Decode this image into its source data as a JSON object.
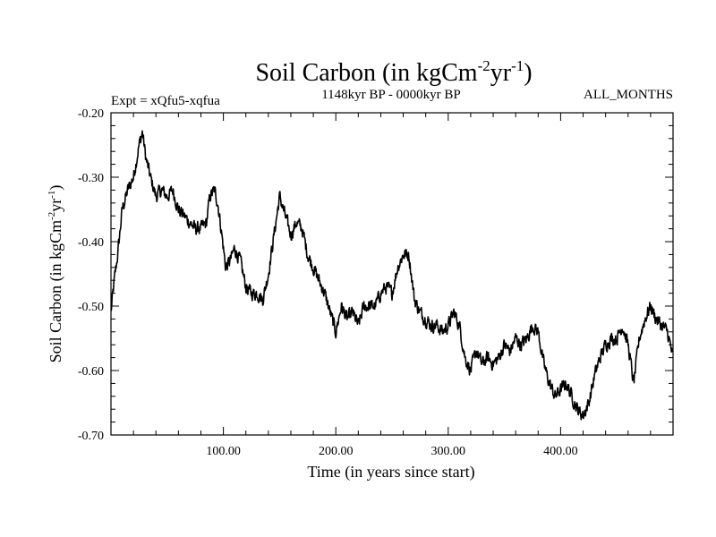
{
  "chart_data": {
    "type": "line",
    "title": "Soil Carbon (in kgCm",
    "title_sup1": "-2",
    "title_mid": "yr",
    "title_sup2": "-1",
    "title_end": ")",
    "subtitle_left": "Expt = xQfu5-xqfua",
    "subtitle_center": "1148kyr BP - 0000kyr BP",
    "subtitle_right": "ALL_MONTHS",
    "xlabel": "Time (in years since start)",
    "ylabel": "Soil Carbon (in kgCm",
    "ylabel_sup1": "-2",
    "ylabel_mid": "yr",
    "ylabel_sup2": "-1",
    "ylabel_end": ")",
    "xlim": [
      0,
      500
    ],
    "ylim": [
      -0.7,
      -0.2
    ],
    "x_ticks": [
      {
        "value": 100,
        "label": "100.00"
      },
      {
        "value": 200,
        "label": "200.00"
      },
      {
        "value": 300,
        "label": "300.00"
      },
      {
        "value": 400,
        "label": "400.00"
      }
    ],
    "y_ticks": [
      {
        "value": -0.2,
        "label": "-0.20"
      },
      {
        "value": -0.3,
        "label": "-0.30"
      },
      {
        "value": -0.4,
        "label": "-0.40"
      },
      {
        "value": -0.5,
        "label": "-0.50"
      },
      {
        "value": -0.6,
        "label": "-0.60"
      },
      {
        "value": -0.7,
        "label": "-0.70"
      }
    ],
    "line_color": "#000000",
    "series": [
      {
        "name": "Soil Carbon",
        "x": [
          0,
          3,
          6,
          10,
          15,
          20,
          25,
          28,
          31,
          35,
          40,
          45,
          50,
          55,
          60,
          65,
          70,
          75,
          80,
          85,
          88,
          92,
          95,
          98,
          102,
          106,
          110,
          115,
          120,
          125,
          130,
          135,
          140,
          145,
          150,
          155,
          160,
          165,
          170,
          175,
          180,
          185,
          190,
          195,
          200,
          205,
          210,
          215,
          220,
          225,
          230,
          235,
          240,
          245,
          250,
          255,
          260,
          265,
          270,
          275,
          280,
          285,
          290,
          295,
          300,
          305,
          310,
          315,
          320,
          325,
          330,
          335,
          340,
          345,
          350,
          355,
          360,
          365,
          370,
          375,
          380,
          385,
          390,
          395,
          400,
          405,
          410,
          415,
          420,
          425,
          430,
          435,
          440,
          445,
          450,
          455,
          460,
          465,
          470,
          475,
          480,
          485,
          490,
          495,
          500
        ],
        "values": [
          -0.51,
          -0.46,
          -0.42,
          -0.35,
          -0.32,
          -0.3,
          -0.25,
          -0.23,
          -0.27,
          -0.3,
          -0.33,
          -0.32,
          -0.33,
          -0.32,
          -0.35,
          -0.36,
          -0.37,
          -0.38,
          -0.38,
          -0.37,
          -0.33,
          -0.32,
          -0.34,
          -0.38,
          -0.44,
          -0.43,
          -0.41,
          -0.43,
          -0.47,
          -0.48,
          -0.48,
          -0.49,
          -0.45,
          -0.39,
          -0.33,
          -0.36,
          -0.39,
          -0.37,
          -0.38,
          -0.42,
          -0.44,
          -0.46,
          -0.48,
          -0.51,
          -0.54,
          -0.5,
          -0.52,
          -0.51,
          -0.53,
          -0.5,
          -0.5,
          -0.5,
          -0.48,
          -0.47,
          -0.48,
          -0.44,
          -0.42,
          -0.42,
          -0.49,
          -0.51,
          -0.52,
          -0.53,
          -0.53,
          -0.54,
          -0.53,
          -0.51,
          -0.53,
          -0.58,
          -0.6,
          -0.57,
          -0.59,
          -0.58,
          -0.59,
          -0.58,
          -0.56,
          -0.57,
          -0.55,
          -0.56,
          -0.55,
          -0.53,
          -0.54,
          -0.59,
          -0.62,
          -0.64,
          -0.63,
          -0.62,
          -0.64,
          -0.66,
          -0.67,
          -0.65,
          -0.61,
          -0.58,
          -0.56,
          -0.55,
          -0.55,
          -0.53,
          -0.56,
          -0.62,
          -0.55,
          -0.52,
          -0.5,
          -0.52,
          -0.53,
          -0.54,
          -0.58
        ]
      }
    ]
  }
}
